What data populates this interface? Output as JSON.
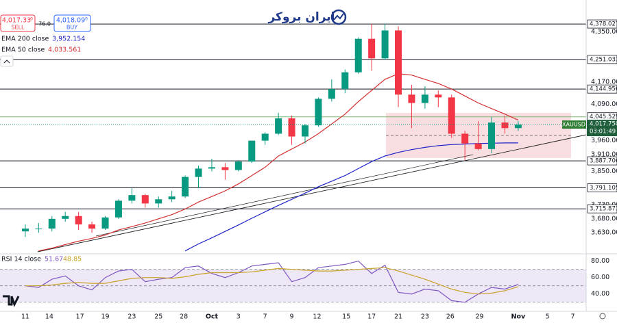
{
  "header": {
    "logo": "ایران بروکر",
    "sell_price": "4,017.33",
    "sell_sup": "0",
    "sell": "SELL",
    "spread": "76.0",
    "buy_price": "4,018.09",
    "buy_sup": "0",
    "buy": "BUY",
    "ema200_name": "EMA 200 close",
    "ema200_value": "3,952.154",
    "ema50_name": "EMA 50 close",
    "ema50_value": "4,033.561",
    "rsi_name": "RSI 14 close",
    "rsi_value": "51.67",
    "rsi_ma_value": "48.85"
  },
  "chart_data": [
    {
      "type": "candlestick",
      "symbol": "XAUUSD",
      "x": [
        0,
        1,
        2,
        3,
        4,
        5,
        6,
        7,
        8,
        9,
        10,
        11,
        12,
        13,
        14,
        15,
        16,
        17,
        18,
        19,
        20,
        21,
        22,
        23,
        24,
        25,
        26,
        27,
        28,
        29,
        30,
        31,
        32,
        33,
        34,
        35,
        36,
        37
      ],
      "open": [
        3635,
        3645,
        3645,
        3680,
        3690,
        3660,
        3645,
        3685,
        3745,
        3765,
        3735,
        3750,
        3760,
        3830,
        3860,
        3865,
        3855,
        3885,
        3960,
        3985,
        4040,
        3975,
        4015,
        4110,
        4145,
        4205,
        4325,
        4255,
        4355,
        4125,
        4095,
        4125,
        4115,
        3985,
        3950,
        3930,
        4025,
        4005
      ],
      "high": [
        3660,
        3665,
        3690,
        3705,
        3705,
        3670,
        3690,
        3750,
        3790,
        3770,
        3760,
        3780,
        3835,
        3870,
        3895,
        3880,
        3890,
        3960,
        3990,
        4060,
        4050,
        4020,
        4115,
        4180,
        4215,
        4330,
        4380,
        4380,
        4370,
        4160,
        4155,
        4140,
        4125,
        3995,
        4030,
        4045,
        4050,
        4030
      ],
      "low": [
        3615,
        3630,
        3635,
        3670,
        3640,
        3630,
        3640,
        3680,
        3735,
        3720,
        3720,
        3740,
        3755,
        3790,
        3850,
        3820,
        3850,
        3880,
        3945,
        3980,
        3945,
        3950,
        4010,
        4100,
        4130,
        4200,
        4210,
        4250,
        4080,
        4005,
        4075,
        4080,
        3970,
        3890,
        3925,
        3915,
        3985,
        3995
      ],
      "close": [
        3645,
        3645,
        3680,
        3690,
        3660,
        3645,
        3685,
        3745,
        3765,
        3735,
        3750,
        3760,
        3830,
        3860,
        3865,
        3855,
        3885,
        3960,
        3985,
        4040,
        3975,
        4015,
        4110,
        4145,
        4205,
        4325,
        4255,
        4355,
        4125,
        4095,
        4125,
        4115,
        3985,
        3950,
        3930,
        4025,
        4005,
        4017.75
      ],
      "up_color": "#089981",
      "down_color": "#f23645",
      "series": [
        {
          "name": "EMA 50",
          "color": "#d32f2f",
          "values": [
            null,
            3565,
            3575,
            3588,
            3600,
            3610,
            3622,
            3640,
            3652,
            3665,
            3680,
            3695,
            3715,
            3740,
            3760,
            3780,
            3805,
            3835,
            3865,
            3905,
            3930,
            3955,
            3985,
            4020,
            4055,
            4100,
            4140,
            4180,
            4200,
            4195,
            4180,
            4165,
            4145,
            4120,
            4095,
            4075,
            4055,
            4034
          ]
        },
        {
          "name": "EMA 200",
          "color": "#1e22c8",
          "values": [
            null,
            null,
            null,
            null,
            null,
            null,
            null,
            null,
            null,
            null,
            null,
            null,
            3565,
            3590,
            3612,
            3635,
            3658,
            3682,
            3705,
            3728,
            3750,
            3772,
            3795,
            3815,
            3835,
            3860,
            3885,
            3905,
            3918,
            3928,
            3936,
            3942,
            3946,
            3948,
            3950,
            3951,
            3952,
            3952
          ]
        }
      ],
      "xlim": [
        -1.9,
        42.1
      ],
      "xticks": [
        {
          "value": 0,
          "label": "11"
        },
        {
          "value": 1.8,
          "label": "14"
        },
        {
          "value": 4.1,
          "label": "17"
        },
        {
          "value": 6,
          "label": "19"
        },
        {
          "value": 8,
          "label": "23"
        },
        {
          "value": 10,
          "label": "25"
        },
        {
          "value": 11.9,
          "label": "28"
        },
        {
          "value": 14,
          "label": "Oct"
        },
        {
          "value": 16,
          "label": "3"
        },
        {
          "value": 18,
          "label": "7"
        },
        {
          "value": 20,
          "label": "9"
        },
        {
          "value": 21.9,
          "label": "12"
        },
        {
          "value": 24.1,
          "label": "15"
        },
        {
          "value": 26,
          "label": "17"
        },
        {
          "value": 28,
          "label": "21"
        },
        {
          "value": 30,
          "label": "23"
        },
        {
          "value": 31.9,
          "label": "26"
        },
        {
          "value": 34.1,
          "label": "29"
        },
        {
          "value": 37,
          "label": "Nov"
        },
        {
          "value": 39.2,
          "label": "5"
        },
        {
          "value": 41.1,
          "label": "7"
        }
      ],
      "ylim": [
        3557,
        4464
      ],
      "yticks": [
        {
          "value": 4350,
          "label": "4,350.000"
        },
        {
          "value": 4170,
          "label": "4,170.000"
        },
        {
          "value": 4090,
          "label": "4,090.000"
        },
        {
          "value": 3960,
          "label": "3,960.000"
        },
        {
          "value": 3910,
          "label": "3,910.000"
        },
        {
          "value": 3850,
          "label": "3,850.000"
        },
        {
          "value": 3730,
          "label": "3,730.000"
        },
        {
          "value": 3680,
          "label": "3,680.000"
        },
        {
          "value": 3630,
          "label": "3,630.000"
        }
      ],
      "levels": [
        {
          "value": 4378.027,
          "label": "4,378.027",
          "color": "#131722"
        },
        {
          "value": 4251.033,
          "label": "4,251.033",
          "color": "#131722"
        },
        {
          "value": 4144.956,
          "label": "4,144.956",
          "color": "#131722"
        },
        {
          "value": 4045.529,
          "label": "4,045.529",
          "color": "#7cb66e"
        },
        {
          "value": 3887.706,
          "label": "3,887.706",
          "color": "#131722"
        },
        {
          "value": 3791.105,
          "label": "3,791.105",
          "color": "#131722"
        },
        {
          "value": 3715.873,
          "label": "3,715.873",
          "color": "#131722"
        }
      ],
      "last_price": {
        "value": 4017.75,
        "label": "4,017.750"
      },
      "countdown": "03:01:49",
      "grid": false
    },
    {
      "type": "line",
      "x": [
        0,
        1,
        2,
        3,
        4,
        5,
        6,
        7,
        8,
        9,
        10,
        11,
        12,
        13,
        14,
        15,
        16,
        17,
        18,
        19,
        20,
        21,
        22,
        23,
        24,
        25,
        26,
        27,
        28,
        29,
        30,
        31,
        32,
        33,
        34,
        35,
        36,
        37
      ],
      "series": [
        {
          "name": "RSI 14",
          "color": "#7e57c2",
          "values": [
            50,
            48,
            58,
            62,
            50,
            45,
            60,
            68,
            70,
            55,
            58,
            60,
            72,
            74,
            65,
            60,
            66,
            74,
            76,
            78,
            55,
            60,
            72,
            74,
            76,
            80,
            65,
            75,
            42,
            40,
            46,
            44,
            32,
            30,
            40,
            48,
            46,
            51.67
          ]
        },
        {
          "name": "RSI MA",
          "color": "#c9a227",
          "values": [
            50,
            50,
            51,
            53,
            54,
            53,
            53,
            56,
            59,
            60,
            60,
            59,
            61,
            64,
            66,
            66,
            66,
            67,
            69,
            71,
            70,
            69,
            68,
            68,
            69,
            70,
            71,
            72,
            68,
            63,
            58,
            52,
            46,
            42,
            40,
            41,
            44,
            48.85
          ]
        }
      ],
      "xlim": [
        -1.9,
        42.1
      ],
      "ylim": [
        19,
        88
      ],
      "yticks": [
        {
          "value": 80,
          "label": "80.00"
        },
        {
          "value": 60,
          "label": "60.00"
        },
        {
          "value": 40,
          "label": "40.00"
        }
      ],
      "band": [
        30,
        70
      ],
      "midline": 50
    }
  ]
}
